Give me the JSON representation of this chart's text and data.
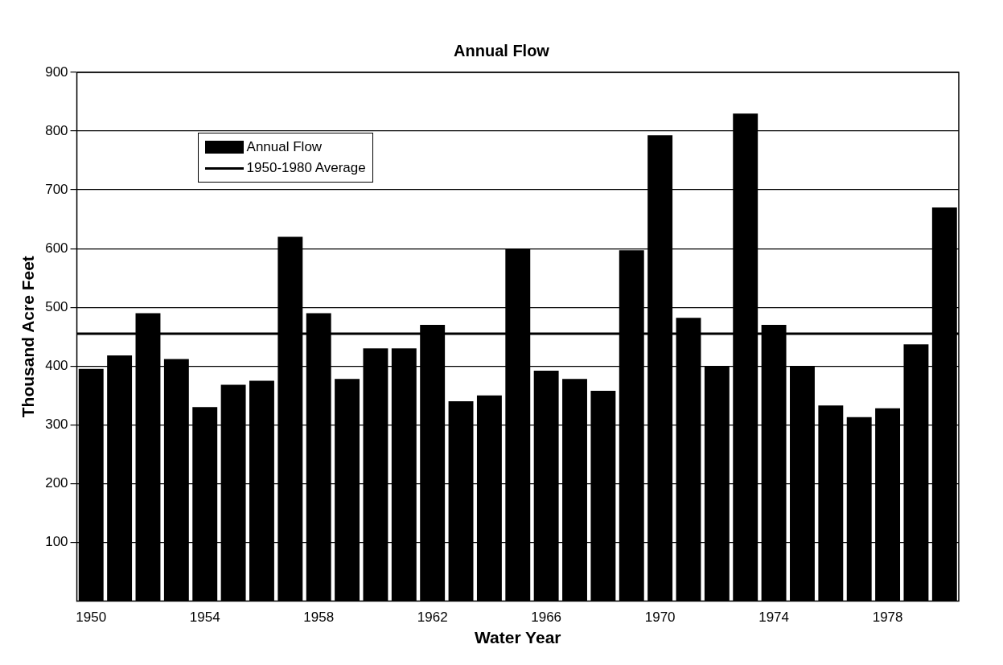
{
  "chart_data": {
    "type": "bar",
    "title": "Annual Flow",
    "xlabel": "Water Year",
    "ylabel": "Thousand Acre Feet",
    "categories": [
      "1950",
      null,
      null,
      null,
      "1954",
      null,
      null,
      null,
      "1958",
      null,
      null,
      null,
      "1962",
      null,
      null,
      null,
      "1966",
      null,
      null,
      null,
      "1970",
      null,
      null,
      null,
      "1974",
      null,
      null,
      null,
      "1978",
      null,
      null
    ],
    "series": [
      {
        "name": "Annual Flow",
        "color": "#000000",
        "values": [
          395,
          418,
          490,
          412,
          330,
          368,
          375,
          620,
          490,
          378,
          430,
          430,
          470,
          340,
          350,
          600,
          392,
          378,
          358,
          597,
          793,
          482,
          400,
          830,
          470,
          400,
          333,
          313,
          328,
          437,
          670
        ]
      }
    ],
    "ref_lines": [
      {
        "axis": "y",
        "value": 455,
        "label": "1950-1980 Average",
        "color": "#000000"
      }
    ],
    "ylim": [
      0,
      900
    ],
    "yticks": [
      100,
      200,
      300,
      400,
      500,
      600,
      700,
      800,
      900
    ],
    "grid": "y",
    "legend": "top left"
  }
}
